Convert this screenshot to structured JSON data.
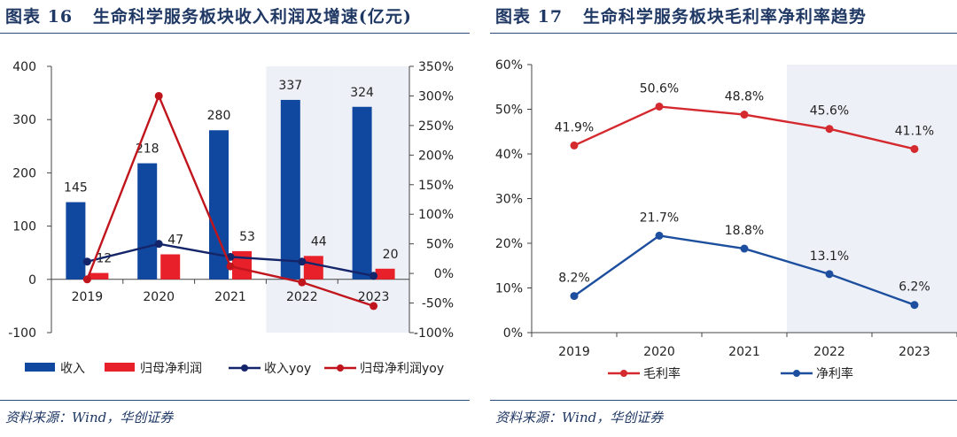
{
  "left": {
    "figure_label": "图表 16",
    "title": "生命科学服务板块收入利润及增速(亿元)",
    "source": "资料来源：Wind，华创证券",
    "chart_data": {
      "type": "bar",
      "categories": [
        "2019",
        "2020",
        "2021",
        "2022",
        "2023"
      ],
      "ylim": [
        -100,
        400
      ],
      "yticks": [
        -100,
        0,
        100,
        200,
        300,
        400
      ],
      "y2lim": [
        -100,
        350
      ],
      "y2ticks": [
        "-100%",
        "-50%",
        "0%",
        "50%",
        "100%",
        "150%",
        "200%",
        "250%",
        "300%",
        "350%"
      ],
      "y2tick_values": [
        -100,
        -50,
        0,
        50,
        100,
        150,
        200,
        250,
        300,
        350
      ],
      "yticks_labels": [
        "-100",
        "0",
        "100",
        "200",
        "300",
        "400"
      ],
      "shaded_categories": [
        "2022",
        "2023"
      ],
      "legend_position": "bottom",
      "series": [
        {
          "name": "收入",
          "kind": "bar",
          "axis": "left",
          "color": "#1048a0",
          "values": [
            145,
            218,
            280,
            337,
            324
          ],
          "labels": [
            "145",
            "218",
            "280",
            "337",
            "324"
          ]
        },
        {
          "name": "归母净利润",
          "kind": "bar",
          "axis": "left",
          "color": "#e8202a",
          "values": [
            12,
            47,
            53,
            44,
            20
          ],
          "labels": [
            "12",
            "47",
            "53",
            "44",
            "20"
          ]
        },
        {
          "name": "收入yoy",
          "kind": "line",
          "axis": "right",
          "color": "#14256a",
          "values": [
            20,
            50,
            28,
            20,
            -4
          ]
        },
        {
          "name": "归母净利润yoy",
          "kind": "line",
          "axis": "right",
          "color": "#c0151c",
          "values": [
            -10,
            300,
            12,
            -15,
            -55
          ]
        }
      ]
    }
  },
  "right": {
    "figure_label": "图表 17",
    "title": "生命科学服务板块毛利率净利率趋势",
    "source": "资料来源：Wind，华创证券",
    "chart_data": {
      "type": "line",
      "categories": [
        "2019",
        "2020",
        "2021",
        "2022",
        "2023"
      ],
      "ylim": [
        0,
        60
      ],
      "yticks": [
        0,
        10,
        20,
        30,
        40,
        50,
        60
      ],
      "ytick_labels": [
        "0%",
        "10%",
        "20%",
        "30%",
        "40%",
        "50%",
        "60%"
      ],
      "shaded_categories": [
        "2022",
        "2023"
      ],
      "legend_position": "bottom",
      "series": [
        {
          "name": "毛利率",
          "color": "#d42a2f",
          "values": [
            41.9,
            50.6,
            48.8,
            45.6,
            41.1
          ],
          "labels": [
            "41.9%",
            "50.6%",
            "48.8%",
            "45.6%",
            "41.1%"
          ]
        },
        {
          "name": "净利率",
          "color": "#1d4f9e",
          "values": [
            8.2,
            21.7,
            18.8,
            13.1,
            6.2
          ],
          "labels": [
            "8.2%",
            "21.7%",
            "18.8%",
            "13.1%",
            "6.2%"
          ]
        }
      ]
    }
  }
}
